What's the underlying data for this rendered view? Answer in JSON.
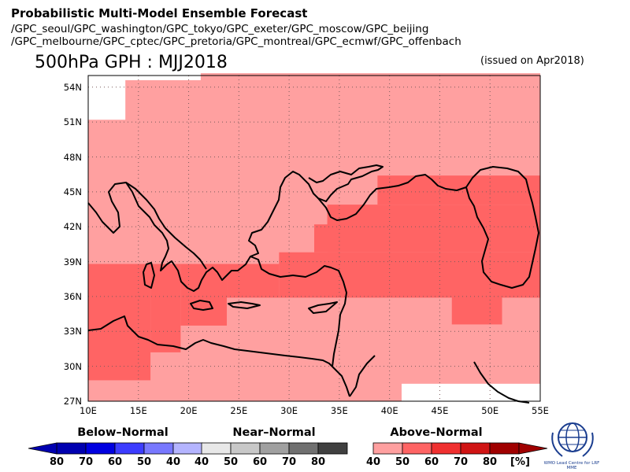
{
  "title": "Probabilistic Multi-Model Ensemble Forecast",
  "gpc_line1": "/GPC_seoul/GPC_washington/GPC_tokyo/GPC_exeter/GPC_moscow/GPC_beijing",
  "gpc_line2": "/GPC_melbourne/GPC_cptec/GPC_pretoria/GPC_montreal/GPC_ecmwf/GPC_offenbach",
  "map_title": "500hPa GPH : MJJ2018",
  "issued": "(issued on Apr2018)",
  "lat_labels": [
    "54N",
    "51N",
    "48N",
    "45N",
    "42N",
    "39N",
    "36N",
    "33N",
    "30N",
    "27N"
  ],
  "lon_labels": [
    "10E",
    "15E",
    "20E",
    "25E",
    "30E",
    "35E",
    "40E",
    "45E",
    "50E",
    "55E"
  ],
  "legend": {
    "below": {
      "title": "Below–Normal",
      "labels": [
        "80",
        "70",
        "60",
        "50",
        "40"
      ],
      "colors": [
        "#0000b0",
        "#0000e0",
        "#3c3cff",
        "#7878ff",
        "#b4b4ff"
      ]
    },
    "near": {
      "title": "Near–Normal",
      "labels": [
        "40",
        "50",
        "60",
        "70",
        "80"
      ],
      "colors": [
        "#e8e8e8",
        "#c8c8c8",
        "#a0a0a0",
        "#707070",
        "#404040"
      ]
    },
    "above": {
      "title": "Above–Normal",
      "labels": [
        "40",
        "50",
        "60",
        "70",
        "80"
      ],
      "unit": "[%]",
      "colors": [
        "#ffa0a0",
        "#ff6464",
        "#f03030",
        "#d01414",
        "#a00000"
      ]
    }
  },
  "logo_text": "WMO Lead Centre for LRF MME",
  "colors": {
    "above40": "#ffa0a0",
    "above50": "#ff6464",
    "none": "#ffffff"
  }
}
